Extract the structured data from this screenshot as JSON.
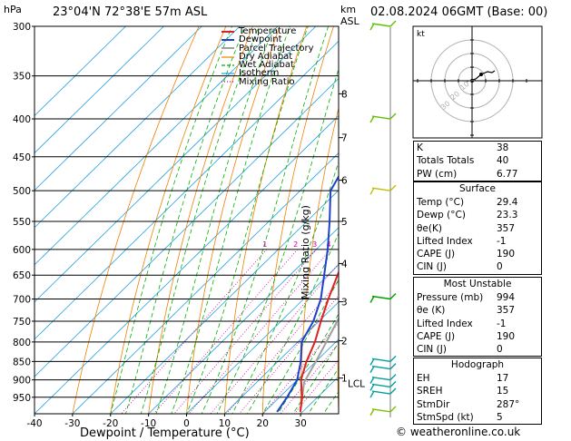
{
  "header": {
    "hpa_unit": "hPa",
    "location": "23°04'N  72°38'E  57m  ASL",
    "km_unit": "km",
    "asl_unit": "ASL",
    "valid_time": "02.08.2024  06GMT  (Base: 00)",
    "footer": "© weatheronline.co.uk"
  },
  "legend": [
    "Temperature",
    "Dewpoint",
    "Parcel Trajectory",
    "Dry Adiabat",
    "Wet Adiabat",
    "Isotherm",
    "Mixing Ratio"
  ],
  "colors": {
    "temperature": "#e02020",
    "dewpoint": "#1f3fd0",
    "parcel": "#a0a0a0",
    "dry_adiabat": "#f08000",
    "wet_adiabat": "#00b000",
    "isotherm": "#20a0e0",
    "mixing_ratio": "#d000a0"
  },
  "chart_data": {
    "type": "skew-t",
    "xlabel": "Dewpoint / Temperature (°C)",
    "ylabel_right": "Mixing Ratio (g/kg)",
    "x_ticks": [
      -40,
      -30,
      -20,
      -10,
      0,
      10,
      20,
      30
    ],
    "x_tick_labels": [
      "-40",
      "-30",
      "-20",
      "-10",
      "0",
      "10",
      "20",
      "30"
    ],
    "pressure_levels": [
      300,
      350,
      400,
      450,
      500,
      550,
      600,
      650,
      700,
      750,
      800,
      850,
      900,
      950
    ],
    "pressure_labels": [
      "300",
      "350",
      "400",
      "450",
      "500",
      "550",
      "600",
      "650",
      "700",
      "750",
      "800",
      "850",
      "900",
      "950"
    ],
    "xlim": [
      -40,
      40
    ],
    "plim": [
      300,
      1000
    ],
    "km_ticks": [
      {
        "km": "1",
        "p": 895
      },
      {
        "km": "2",
        "p": 797
      },
      {
        "km": "3",
        "p": 706
      },
      {
        "km": "4",
        "p": 627
      },
      {
        "km": "5",
        "p": 550
      },
      {
        "km": "6",
        "p": 484
      },
      {
        "km": "7",
        "p": 424
      },
      {
        "km": "8",
        "p": 370
      }
    ],
    "lcl_pressure": 907,
    "lcl_label": "LCL",
    "mixing_ratio_labels": [
      "1",
      "2",
      "3",
      "4",
      "6",
      "8",
      "10",
      "15",
      "20",
      "25"
    ],
    "mixing_ratio_values": [
      1,
      2,
      3,
      4,
      6,
      8,
      10,
      15,
      20,
      25
    ],
    "temperature": {
      "p": [
        994,
        950,
        900,
        850,
        800,
        750,
        700,
        650,
        600,
        550,
        500,
        450,
        400,
        350,
        330
      ],
      "t": [
        29.4,
        26,
        21,
        17.5,
        14.5,
        10.5,
        6.5,
        2.5,
        -1.5,
        -6,
        -11.5,
        -18,
        -26,
        -35,
        -40
      ]
    },
    "dewpoint": {
      "p": [
        994,
        950,
        900,
        850,
        800,
        750,
        700,
        650,
        600,
        550,
        500,
        450,
        400,
        350,
        330
      ],
      "t": [
        23.3,
        22,
        20,
        16,
        11,
        8.5,
        4.5,
        -1,
        -7,
        -14,
        -22,
        -26,
        -31,
        -38,
        -42
      ]
    },
    "parcel": {
      "p": [
        994,
        907,
        850,
        800,
        750,
        700,
        650,
        600,
        550,
        500,
        450,
        400,
        350,
        330
      ],
      "t": [
        29.4,
        22.5,
        20,
        17.5,
        14.8,
        12,
        8.8,
        5,
        1,
        -4.5,
        -11,
        -19,
        -28.5,
        -33
      ]
    }
  },
  "panel": {
    "rows1": [
      {
        "k": "K",
        "v": "38"
      },
      {
        "k": "Totals Totals",
        "v": "40"
      },
      {
        "k": "PW (cm)",
        "v": "6.77"
      }
    ],
    "surface_title": "Surface",
    "surface": [
      {
        "k": "Temp (°C)",
        "v": "29.4"
      },
      {
        "k": "Dewp (°C)",
        "v": "23.3"
      },
      {
        "k": "θe(K)",
        "v": "357"
      },
      {
        "k": "Lifted Index",
        "v": "-1"
      },
      {
        "k": "CAPE (J)",
        "v": "190"
      },
      {
        "k": "CIN (J)",
        "v": "0"
      }
    ],
    "mu_title": "Most Unstable",
    "mu": [
      {
        "k": "Pressure (mb)",
        "v": "994"
      },
      {
        "k": "θe (K)",
        "v": "357"
      },
      {
        "k": "Lifted Index",
        "v": "-1"
      },
      {
        "k": "CAPE (J)",
        "v": "190"
      },
      {
        "k": "CIN (J)",
        "v": "0"
      }
    ],
    "hodo_title": "Hodograph",
    "hodo": [
      {
        "k": "EH",
        "v": "17"
      },
      {
        "k": "SREH",
        "v": "15"
      },
      {
        "k": "StmDir",
        "v": "287°"
      },
      {
        "k": "StmSpd (kt)",
        "v": "5"
      }
    ]
  },
  "hodograph": {
    "label": "kt",
    "ring_labels": [
      "10",
      "20",
      "30"
    ]
  }
}
